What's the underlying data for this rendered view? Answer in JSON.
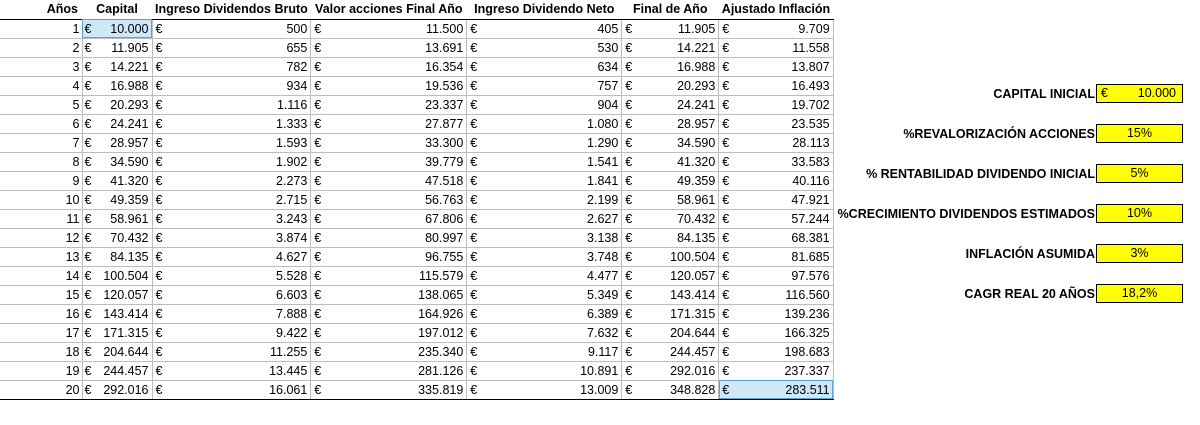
{
  "table": {
    "headers": {
      "anos": "Años",
      "capital": "Capital",
      "dividendos_bruto": "Ingreso Dividendos Bruto",
      "valor_acciones": "Valor acciones Final Año",
      "dividendo_neto": "Ingreso Dividendo Neto",
      "final_ano": "Final de Año",
      "ajustado": "Ajustado Inflación"
    },
    "currency_symbol": "€",
    "rows": [
      {
        "ano": "1",
        "capital": "10.000",
        "bruto": "500",
        "valor": "11.500",
        "neto": "405",
        "final": "11.905",
        "ajustado": "9.709"
      },
      {
        "ano": "2",
        "capital": "11.905",
        "bruto": "655",
        "valor": "13.691",
        "neto": "530",
        "final": "14.221",
        "ajustado": "11.558"
      },
      {
        "ano": "3",
        "capital": "14.221",
        "bruto": "782",
        "valor": "16.354",
        "neto": "634",
        "final": "16.988",
        "ajustado": "13.807"
      },
      {
        "ano": "4",
        "capital": "16.988",
        "bruto": "934",
        "valor": "19.536",
        "neto": "757",
        "final": "20.293",
        "ajustado": "16.493"
      },
      {
        "ano": "5",
        "capital": "20.293",
        "bruto": "1.116",
        "valor": "23.337",
        "neto": "904",
        "final": "24.241",
        "ajustado": "19.702"
      },
      {
        "ano": "6",
        "capital": "24.241",
        "bruto": "1.333",
        "valor": "27.877",
        "neto": "1.080",
        "final": "28.957",
        "ajustado": "23.535"
      },
      {
        "ano": "7",
        "capital": "28.957",
        "bruto": "1.593",
        "valor": "33.300",
        "neto": "1.290",
        "final": "34.590",
        "ajustado": "28.113"
      },
      {
        "ano": "8",
        "capital": "34.590",
        "bruto": "1.902",
        "valor": "39.779",
        "neto": "1.541",
        "final": "41.320",
        "ajustado": "33.583"
      },
      {
        "ano": "9",
        "capital": "41.320",
        "bruto": "2.273",
        "valor": "47.518",
        "neto": "1.841",
        "final": "49.359",
        "ajustado": "40.116"
      },
      {
        "ano": "10",
        "capital": "49.359",
        "bruto": "2.715",
        "valor": "56.763",
        "neto": "2.199",
        "final": "58.961",
        "ajustado": "47.921"
      },
      {
        "ano": "11",
        "capital": "58.961",
        "bruto": "3.243",
        "valor": "67.806",
        "neto": "2.627",
        "final": "70.432",
        "ajustado": "57.244"
      },
      {
        "ano": "12",
        "capital": "70.432",
        "bruto": "3.874",
        "valor": "80.997",
        "neto": "3.138",
        "final": "84.135",
        "ajustado": "68.381"
      },
      {
        "ano": "13",
        "capital": "84.135",
        "bruto": "4.627",
        "valor": "96.755",
        "neto": "3.748",
        "final": "100.504",
        "ajustado": "81.685"
      },
      {
        "ano": "14",
        "capital": "100.504",
        "bruto": "5.528",
        "valor": "115.579",
        "neto": "4.477",
        "final": "120.057",
        "ajustado": "97.576"
      },
      {
        "ano": "15",
        "capital": "120.057",
        "bruto": "6.603",
        "valor": "138.065",
        "neto": "5.349",
        "final": "143.414",
        "ajustado": "116.560"
      },
      {
        "ano": "16",
        "capital": "143.414",
        "bruto": "7.888",
        "valor": "164.926",
        "neto": "6.389",
        "final": "171.315",
        "ajustado": "139.236"
      },
      {
        "ano": "17",
        "capital": "171.315",
        "bruto": "9.422",
        "valor": "197.012",
        "neto": "7.632",
        "final": "204.644",
        "ajustado": "166.325"
      },
      {
        "ano": "18",
        "capital": "204.644",
        "bruto": "11.255",
        "valor": "235.340",
        "neto": "9.117",
        "final": "244.457",
        "ajustado": "198.683"
      },
      {
        "ano": "19",
        "capital": "244.457",
        "bruto": "13.445",
        "valor": "281.126",
        "neto": "10.891",
        "final": "292.016",
        "ajustado": "237.337"
      },
      {
        "ano": "20",
        "capital": "292.016",
        "bruto": "16.061",
        "valor": "335.819",
        "neto": "13.009",
        "final": "348.828",
        "ajustado": "283.511"
      }
    ]
  },
  "params": [
    {
      "label": "CAPITAL INICIAL",
      "value": "10.000",
      "currency": true
    },
    {
      "label": "%REVALORIZACIÓN ACCIONES",
      "value": "15%",
      "currency": false
    },
    {
      "label": "% RENTABILIDAD DIVIDENDO INICIAL",
      "value": "5%",
      "currency": false
    },
    {
      "label": "%CRECIMIENTO DIVIDENDOS ESTIMADOS",
      "value": "10%",
      "currency": false
    },
    {
      "label": "INFLACIÓN ASUMIDA",
      "value": "3%",
      "currency": false
    },
    {
      "label": "CAGR REAL 20 AÑOS",
      "value": "18,2%",
      "currency": false
    }
  ],
  "colors": {
    "input_fill": "#ffff00",
    "selected_fill": "#cfe8f7"
  }
}
